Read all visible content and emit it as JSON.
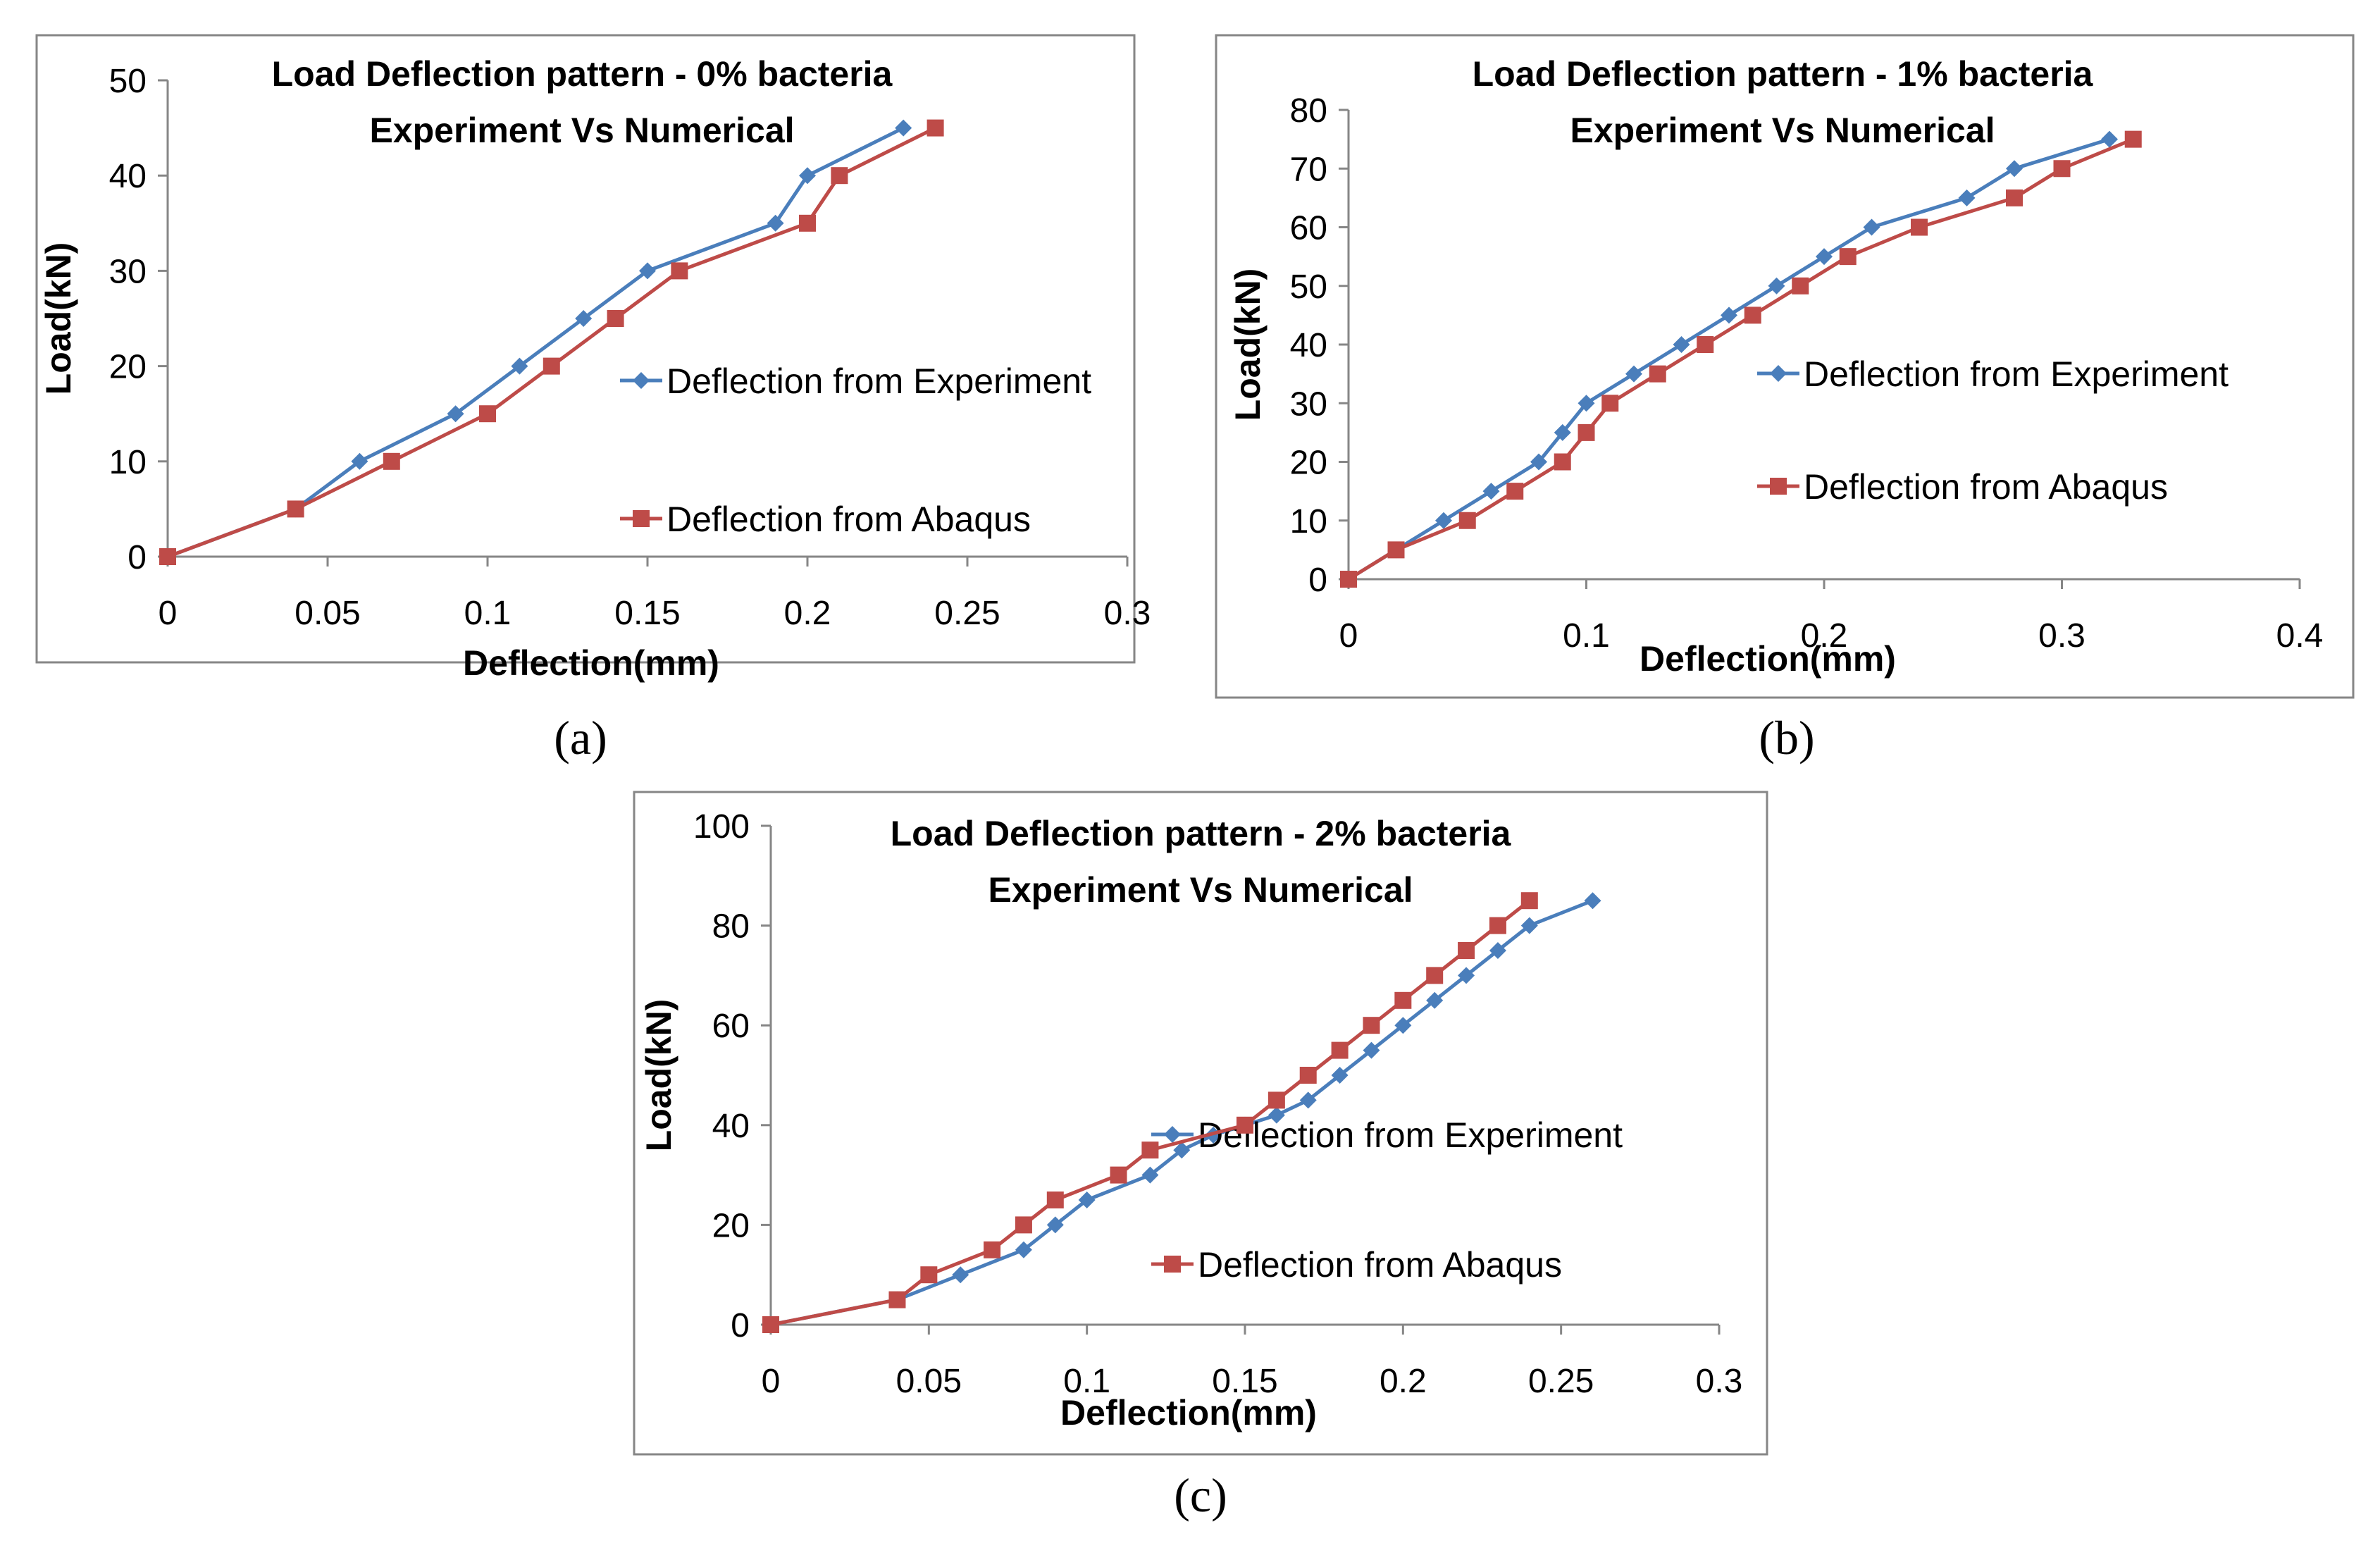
{
  "colors": {
    "experiment": "#4a7ebb",
    "abaqus": "#be4b48",
    "axis": "#868686",
    "frame": "#868686",
    "text": "#000000"
  },
  "chart_data": [
    {
      "type": "line",
      "caption": "(a)",
      "title_line1": "Load Deflection pattern - 0% bacteria",
      "title_line2": "Experiment Vs Numerical",
      "xlabel": "Deflection(mm)",
      "ylabel": "Load(kN)",
      "xlim": [
        0,
        0.3
      ],
      "ylim": [
        0,
        50
      ],
      "xticks": [
        0,
        0.05,
        0.1,
        0.15,
        0.2,
        0.25,
        0.3
      ],
      "xtick_labels": [
        "0",
        "0.05",
        "0.1",
        "0.15",
        "0.2",
        "0.25",
        "0.3"
      ],
      "yticks": [
        0,
        10,
        20,
        30,
        40,
        50
      ],
      "ytick_labels": [
        "0",
        "10",
        "20",
        "30",
        "40",
        "50"
      ],
      "series": [
        {
          "name": "Deflection from Experiment",
          "marker": "diamond",
          "x": [
            0,
            0.04,
            0.06,
            0.09,
            0.11,
            0.13,
            0.15,
            0.19,
            0.2,
            0.23
          ],
          "y": [
            0,
            5,
            10,
            15,
            20,
            25,
            30,
            35,
            40,
            45
          ]
        },
        {
          "name": "Deflection from Abaqus",
          "marker": "square",
          "x": [
            0,
            0.04,
            0.07,
            0.1,
            0.12,
            0.14,
            0.16,
            0.2,
            0.21,
            0.24
          ],
          "y": [
            0,
            5,
            10,
            15,
            20,
            25,
            30,
            35,
            40,
            45
          ]
        }
      ]
    },
    {
      "type": "line",
      "caption": "(b)",
      "title_line1": "Load Deflection pattern - 1% bacteria",
      "title_line2": "Experiment Vs Numerical",
      "xlabel": "Deflection(mm)",
      "ylabel": "Load(kN)",
      "xlim": [
        0,
        0.4
      ],
      "ylim": [
        0,
        80
      ],
      "xticks": [
        0,
        0.1,
        0.2,
        0.3,
        0.4
      ],
      "xtick_labels": [
        "0",
        "0.1",
        "0.2",
        "0.3",
        "0.4"
      ],
      "yticks": [
        0,
        10,
        20,
        30,
        40,
        50,
        60,
        70,
        80
      ],
      "ytick_labels": [
        "0",
        "10",
        "20",
        "30",
        "40",
        "50",
        "60",
        "70",
        "80"
      ],
      "series": [
        {
          "name": "Deflection from Experiment",
          "marker": "diamond",
          "x": [
            0,
            0.02,
            0.04,
            0.06,
            0.08,
            0.09,
            0.1,
            0.12,
            0.14,
            0.16,
            0.18,
            0.2,
            0.22,
            0.26,
            0.28,
            0.32
          ],
          "y": [
            0,
            5,
            10,
            15,
            20,
            25,
            30,
            35,
            40,
            45,
            50,
            55,
            60,
            65,
            70,
            75
          ]
        },
        {
          "name": "Deflection from Abaqus",
          "marker": "square",
          "x": [
            0,
            0.02,
            0.05,
            0.07,
            0.09,
            0.1,
            0.11,
            0.13,
            0.15,
            0.17,
            0.19,
            0.21,
            0.24,
            0.28,
            0.3,
            0.33
          ],
          "y": [
            0,
            5,
            10,
            15,
            20,
            25,
            30,
            35,
            40,
            45,
            50,
            55,
            60,
            65,
            70,
            75
          ]
        }
      ]
    },
    {
      "type": "line",
      "caption": "(c)",
      "title_line1": "Load Deflection pattern - 2% bacteria",
      "title_line2": "Experiment Vs Numerical",
      "xlabel": "Deflection(mm)",
      "ylabel": "Load(kN)",
      "xlim": [
        0,
        0.3
      ],
      "ylim": [
        0,
        100
      ],
      "xticks": [
        0,
        0.05,
        0.1,
        0.15,
        0.2,
        0.25,
        0.3
      ],
      "xtick_labels": [
        "0",
        "0.05",
        "0.1",
        "0.15",
        "0.2",
        "0.25",
        "0.3"
      ],
      "yticks": [
        0,
        20,
        40,
        60,
        80,
        100
      ],
      "ytick_labels": [
        "0",
        "20",
        "40",
        "60",
        "80",
        "100"
      ],
      "series": [
        {
          "name": "Deflection from Experiment",
          "marker": "diamond",
          "x": [
            0,
            0.04,
            0.06,
            0.08,
            0.09,
            0.1,
            0.12,
            0.13,
            0.14,
            0.15,
            0.16,
            0.17,
            0.18,
            0.19,
            0.2,
            0.21,
            0.22,
            0.23,
            0.24,
            0.26
          ],
          "y": [
            0,
            5,
            10,
            15,
            20,
            25,
            30,
            35,
            38,
            40,
            42,
            45,
            50,
            55,
            60,
            65,
            70,
            75,
            80,
            85
          ]
        },
        {
          "name": "Deflection from Abaqus",
          "marker": "square",
          "x": [
            0,
            0.04,
            0.05,
            0.07,
            0.08,
            0.09,
            0.11,
            0.12,
            0.15,
            0.16,
            0.17,
            0.18,
            0.19,
            0.2,
            0.21,
            0.22,
            0.23,
            0.24
          ],
          "y": [
            0,
            5,
            10,
            15,
            20,
            25,
            30,
            35,
            40,
            45,
            50,
            55,
            60,
            65,
            70,
            75,
            80,
            85
          ]
        }
      ]
    }
  ]
}
